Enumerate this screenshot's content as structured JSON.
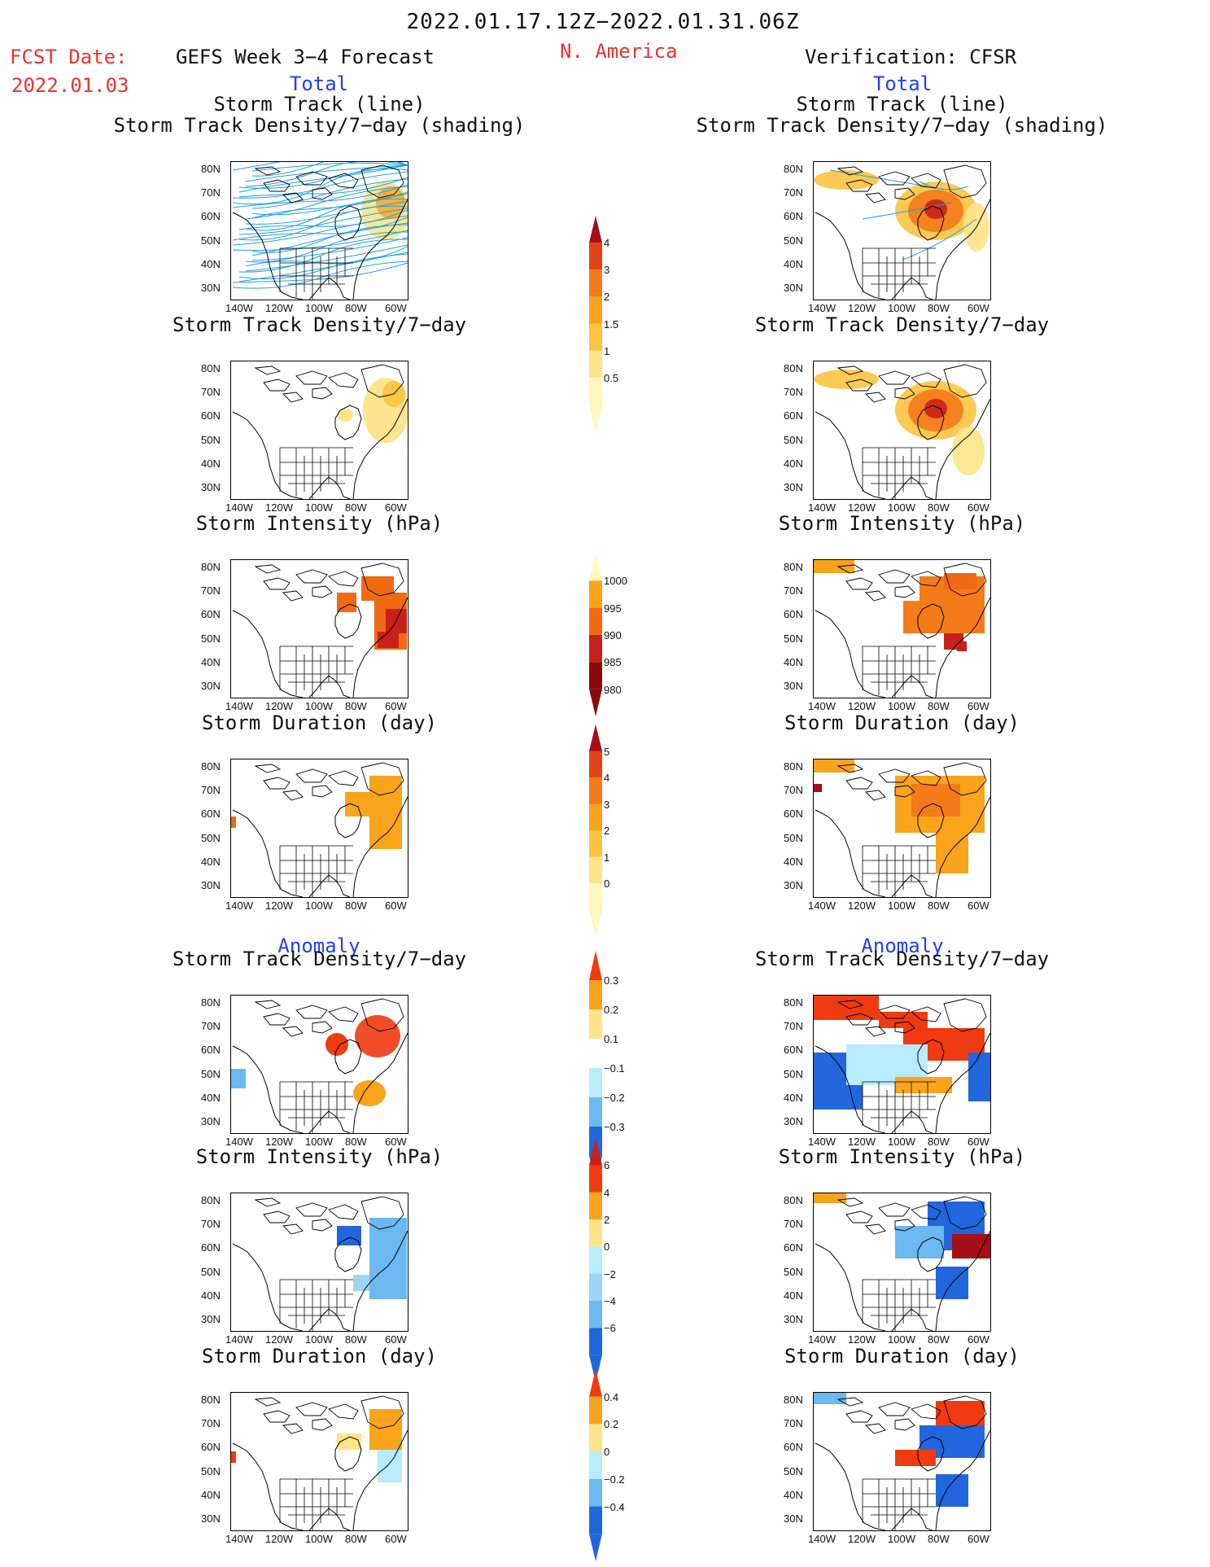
{
  "header": {
    "date_range": "2022.01.17.12Z−2022.01.31.06Z",
    "fcst_label": "FCST Date:",
    "fcst_date": "2022.01.03",
    "left_title": "GEFS Week 3−4 Forecast",
    "region": "N. America",
    "right_title": "Verification: CFSR"
  },
  "sections": {
    "total": "Total",
    "anomaly": "Anomaly"
  },
  "panel_titles": {
    "track_line": "Storm Track (line)",
    "track_density_shading": "Storm Track Density/7−day (shading)",
    "density": "Storm Track Density/7−day",
    "intensity": "Storm Intensity (hPa)",
    "duration": "Storm Duration (day)"
  },
  "axes": {
    "lat_labels": [
      "80N",
      "70N",
      "60N",
      "50N",
      "40N",
      "30N"
    ],
    "lon_labels": [
      "140W",
      "120W",
      "100W",
      "80W",
      "60W"
    ]
  },
  "colorbars": [
    {
      "name": "density-total",
      "labels": [
        "4",
        "3",
        "2",
        "1.5",
        "1",
        "0.5"
      ],
      "colors": [
        "#a50f15",
        "#e2421a",
        "#f47a1a",
        "#f9a41a",
        "#fcc33f",
        "#fde48a",
        "#fff8bf"
      ]
    },
    {
      "name": "intensity-total",
      "labels": [
        "1000",
        "995",
        "990",
        "985",
        "980"
      ],
      "colors": [
        "#fff8bf",
        "#f9a41a",
        "#f06a12",
        "#c8201a",
        "#8a0a0a"
      ]
    },
    {
      "name": "duration-total",
      "labels": [
        "5",
        "4",
        "3",
        "2",
        "1",
        "0"
      ],
      "colors": [
        "#a50f15",
        "#e2421a",
        "#f47a1a",
        "#f9a41a",
        "#fcc33f",
        "#fde48a",
        "#fff8bf"
      ]
    },
    {
      "name": "density-anom",
      "labels": [
        "0.3",
        "0.2",
        "0.1",
        "−0.1",
        "−0.2",
        "−0.3"
      ],
      "colors": [
        "#f03a10",
        "#f9a41a",
        "#fde48a",
        "#ffffff",
        "#b8ecfb",
        "#6cb8f0",
        "#2266dd"
      ]
    },
    {
      "name": "intensity-anom",
      "labels": [
        "6",
        "4",
        "2",
        "0",
        "−2",
        "−4",
        "−6"
      ],
      "colors": [
        "#c8201a",
        "#f03a10",
        "#f9a41a",
        "#fde48a",
        "#b8ecfb",
        "#a0d4f6",
        "#6cb8f0",
        "#2266dd"
      ]
    },
    {
      "name": "duration-anom",
      "labels": [
        "0.4",
        "0.2",
        "0",
        "−0.2",
        "−0.4"
      ],
      "colors": [
        "#f03a10",
        "#f9a41a",
        "#fde48a",
        "#b8ecfb",
        "#6cb8f0",
        "#2266dd"
      ]
    }
  ],
  "colors": {
    "title_red": "#f03030",
    "label_blue": "#1e3cff",
    "track_line": "#1ea0e8"
  }
}
